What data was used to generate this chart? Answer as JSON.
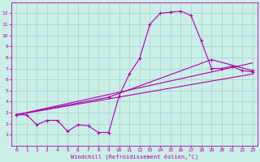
{
  "xlabel": "Windchill (Refroidissement éolien,°C)",
  "bg_color": "#cceee8",
  "grid_color": "#aacccc",
  "line_color": "#aa00aa",
  "xlim": [
    -0.5,
    23.5
  ],
  "ylim": [
    0,
    13
  ],
  "xticks": [
    0,
    1,
    2,
    3,
    4,
    5,
    6,
    7,
    8,
    9,
    10,
    11,
    12,
    13,
    14,
    15,
    16,
    17,
    18,
    19,
    20,
    21,
    22,
    23
  ],
  "yticks": [
    1,
    2,
    3,
    4,
    5,
    6,
    7,
    8,
    9,
    10,
    11,
    12
  ],
  "line1_x": [
    0,
    1,
    2,
    3,
    4,
    5,
    6,
    7,
    8,
    9,
    10,
    11,
    12,
    13,
    14,
    15,
    16,
    17,
    18,
    19,
    20,
    21,
    22,
    23
  ],
  "line1_y": [
    2.8,
    2.8,
    1.9,
    2.3,
    2.3,
    1.3,
    1.9,
    1.8,
    1.2,
    1.2,
    4.5,
    6.5,
    7.9,
    11.0,
    12.0,
    12.1,
    12.2,
    11.8,
    9.5,
    7.0,
    7.0,
    7.2,
    6.8,
    6.7
  ],
  "line2_x": [
    0,
    23
  ],
  "line2_y": [
    2.8,
    6.5
  ],
  "line3_x": [
    0,
    23
  ],
  "line3_y": [
    2.8,
    7.5
  ],
  "line4_x": [
    0,
    9,
    19,
    23
  ],
  "line4_y": [
    2.8,
    4.4,
    7.8,
    6.8
  ]
}
